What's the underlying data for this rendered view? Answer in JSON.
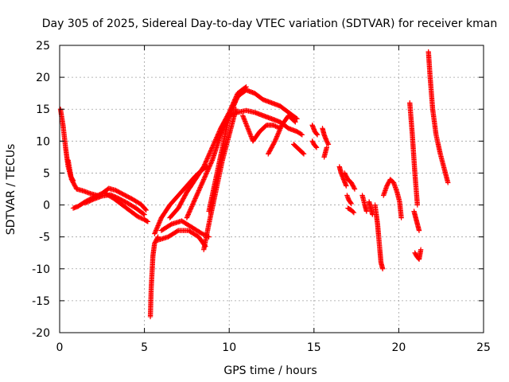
{
  "chart_data": {
    "type": "scatter",
    "title": "Day 305 of 2025, Sidereal Day-to-day VTEC variation (SDTVAR) for receiver kman",
    "xlabel": "GPS time / hours",
    "ylabel": "SDTVAR / TECUs",
    "xlim": [
      0,
      25
    ],
    "ylim": [
      -20,
      25
    ],
    "xticks": [
      0,
      5,
      10,
      15,
      20,
      25
    ],
    "yticks": [
      -20,
      -15,
      -10,
      -5,
      0,
      5,
      10,
      15,
      20,
      25
    ],
    "grid": true,
    "marker": "+",
    "color": "#ff0000",
    "series": [
      {
        "name": "s1",
        "x": [
          0.05,
          0.2,
          0.35,
          0.5,
          0.65,
          0.8
        ],
        "y": [
          15,
          12.5,
          9,
          6,
          4.5,
          3.8
        ]
      },
      {
        "name": "s2",
        "x": [
          0.5,
          0.7,
          1.0,
          1.4,
          1.8,
          2.2
        ],
        "y": [
          7,
          4,
          2.5,
          2.2,
          1.8,
          1.5
        ]
      },
      {
        "name": "s3",
        "x": [
          0.8,
          1.1,
          1.5,
          2.0,
          2.5,
          2.9,
          3.3,
          3.8,
          4.3,
          4.8,
          5.1
        ],
        "y": [
          -0.5,
          -0.2,
          0.5,
          1.2,
          1.8,
          2.6,
          2.3,
          1.6,
          0.9,
          0.1,
          -0.8
        ]
      },
      {
        "name": "s4",
        "x": [
          1.5,
          2.0,
          2.5,
          3.0,
          3.5,
          4.0,
          4.5,
          5.0
        ],
        "y": [
          0.3,
          0.9,
          1.4,
          1.6,
          1.0,
          0.3,
          -0.5,
          -1.5
        ]
      },
      {
        "name": "s5",
        "x": [
          2.7,
          3.2,
          3.7,
          4.2,
          4.6,
          5.0,
          5.2
        ],
        "y": [
          1.8,
          1.0,
          0.0,
          -1.0,
          -1.8,
          -2.3,
          -2.6
        ]
      },
      {
        "name": "s6",
        "x": [
          5.35,
          5.4,
          5.5,
          5.6,
          5.8
        ],
        "y": [
          -17.5,
          -13,
          -8,
          -6,
          -5
        ]
      },
      {
        "name": "s7",
        "x": [
          5.6,
          6.0,
          6.5,
          7.0,
          7.5,
          8.0,
          8.4,
          8.7
        ],
        "y": [
          -4.5,
          -2,
          0,
          1.5,
          3,
          4.5,
          5.5,
          6
        ]
      },
      {
        "name": "s8",
        "x": [
          5.8,
          6.4,
          7.0,
          7.6,
          8.2,
          8.6
        ],
        "y": [
          -5.5,
          -5,
          -4,
          -4,
          -5,
          -6.5
        ]
      },
      {
        "name": "s9",
        "x": [
          6.0,
          6.6,
          7.2,
          7.8,
          8.4,
          8.8
        ],
        "y": [
          -4,
          -3,
          -2.5,
          -3.5,
          -4.5,
          -5
        ]
      },
      {
        "name": "s10",
        "x": [
          6.5,
          7.0,
          7.5,
          8.0,
          8.5,
          9.0,
          9.5,
          10.0,
          10.5,
          11.0
        ],
        "y": [
          -2,
          -0.5,
          2,
          4,
          6,
          9,
          12,
          14.5,
          17.5,
          18.5
        ]
      },
      {
        "name": "s11",
        "x": [
          7.5,
          8.0,
          8.5,
          9.0,
          9.5,
          10.0,
          10.5
        ],
        "y": [
          -2,
          1,
          4,
          7,
          11,
          14,
          17
        ]
      },
      {
        "name": "s12",
        "x": [
          8.5,
          8.8,
          9.2,
          9.6,
          10.0,
          10.4
        ],
        "y": [
          -7,
          -3,
          2,
          7,
          11,
          15
        ]
      },
      {
        "name": "s13",
        "x": [
          8.8,
          9.2,
          9.6,
          10.0,
          10.5,
          11.0,
          11.5,
          12.0,
          12.5,
          13.0,
          13.5,
          14.0
        ],
        "y": [
          -1,
          4,
          9,
          14,
          17,
          18,
          17.5,
          16.5,
          16,
          15.5,
          14.5,
          13.5
        ]
      },
      {
        "name": "s14",
        "x": [
          9.5,
          10.0,
          10.5,
          11.0,
          11.5,
          12.0,
          12.5,
          13.0,
          13.5,
          14.0,
          14.3
        ],
        "y": [
          12,
          14,
          14.5,
          14.8,
          14.5,
          14,
          13.5,
          13,
          12,
          11.5,
          11
        ]
      },
      {
        "name": "s15",
        "x": [
          10.8,
          11.1,
          11.4,
          11.8,
          12.2,
          12.6,
          13.0
        ],
        "y": [
          14,
          12,
          10,
          11.5,
          12.5,
          12.5,
          12
        ]
      },
      {
        "name": "s16",
        "x": [
          12.3,
          12.7,
          13.1,
          13.5,
          13.9
        ],
        "y": [
          8,
          10,
          12.5,
          14,
          13
        ]
      },
      {
        "name": "s17",
        "x": [
          13.8,
          14.0,
          14.2,
          14.4
        ],
        "y": [
          9.5,
          9,
          8.5,
          8
        ]
      },
      {
        "name": "s18",
        "x": [
          14.9,
          15.05,
          15.2
        ],
        "y": [
          12.5,
          11.5,
          11
        ]
      },
      {
        "name": "s19",
        "x": [
          14.9,
          15.0,
          15.15
        ],
        "y": [
          10,
          9.5,
          9
        ]
      },
      {
        "name": "s20",
        "x": [
          15.5,
          15.6,
          15.75,
          15.85
        ],
        "y": [
          12,
          11,
          10,
          9.5
        ]
      },
      {
        "name": "s21",
        "x": [
          15.6,
          15.75
        ],
        "y": [
          7.5,
          9
        ]
      },
      {
        "name": "s22",
        "x": [
          16.5,
          16.6,
          16.75,
          16.9
        ],
        "y": [
          6,
          5,
          4,
          3
        ]
      },
      {
        "name": "s23",
        "x": [
          16.8,
          17.0,
          17.2,
          17.4
        ],
        "y": [
          5,
          4,
          3.5,
          2.5
        ]
      },
      {
        "name": "s24",
        "x": [
          16.95,
          17.05,
          17.2
        ],
        "y": [
          1.5,
          0.8,
          0.2
        ]
      },
      {
        "name": "s25",
        "x": [
          17.0,
          17.2,
          17.35
        ],
        "y": [
          -0.5,
          -0.8,
          -1.2
        ]
      },
      {
        "name": "s26",
        "x": [
          17.85,
          18.0,
          18.1
        ],
        "y": [
          1.5,
          0,
          -1
        ]
      },
      {
        "name": "s27",
        "x": [
          18.25,
          18.35,
          18.45
        ],
        "y": [
          0.5,
          -0.5,
          -1.5
        ]
      },
      {
        "name": "s28",
        "x": [
          18.6,
          18.75,
          18.85,
          18.95,
          19.05
        ],
        "y": [
          0,
          -3,
          -6,
          -9,
          -10
        ]
      },
      {
        "name": "s29",
        "x": [
          19.1,
          19.3,
          19.5,
          19.7,
          19.9,
          20.05,
          20.15
        ],
        "y": [
          1.5,
          3,
          4,
          3.5,
          2,
          0.5,
          -2
        ]
      },
      {
        "name": "s30",
        "x": [
          20.65,
          20.8,
          20.95,
          21.1
        ],
        "y": [
          16,
          11,
          5,
          0
        ]
      },
      {
        "name": "s31",
        "x": [
          20.9,
          21.0,
          21.1,
          21.2
        ],
        "y": [
          -1,
          -2,
          -3,
          -4
        ]
      },
      {
        "name": "s32",
        "x": [
          20.95,
          21.05,
          21.2,
          21.3
        ],
        "y": [
          -7.5,
          -8,
          -8.5,
          -7
        ]
      },
      {
        "name": "s33",
        "x": [
          21.75,
          21.85,
          22.0,
          22.2,
          22.45,
          22.7,
          22.9
        ],
        "y": [
          24,
          20,
          15,
          11,
          8,
          5.5,
          3.5
        ]
      }
    ]
  }
}
